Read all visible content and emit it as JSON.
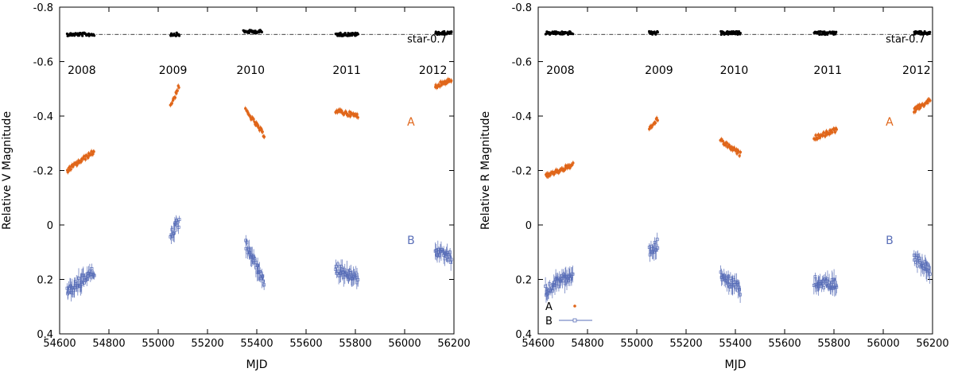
{
  "colors": {
    "A": "#e0661a",
    "B": "#5a6fb8",
    "star": "#000000"
  },
  "chart_data": [
    {
      "type": "scatter",
      "panel": "left",
      "xlabel": "MJD",
      "ylabel": "Relative V  Magnitude",
      "xlim": [
        54600,
        56200
      ],
      "ylim": [
        0.4,
        -0.8
      ],
      "xticks": [
        54600,
        54800,
        55000,
        55200,
        55400,
        55600,
        55800,
        56000,
        56200
      ],
      "yticks": [
        -0.8,
        -0.6,
        -0.4,
        -0.2,
        0,
        0.2,
        0.4
      ],
      "ytick_labels": [
        "-0.8",
        "-0.6",
        "-0.4",
        "-0.2",
        "0",
        "0.2",
        "0.4"
      ],
      "year_labels": [
        {
          "text": "2008",
          "x": 54690
        },
        {
          "text": "2009",
          "x": 55060
        },
        {
          "text": "2010",
          "x": 55375
        },
        {
          "text": "2011",
          "x": 55765
        },
        {
          "text": "2012",
          "x": 56115
        }
      ],
      "year_label_y": -0.555,
      "star_label": {
        "text": "star-0.7",
        "x": 56010,
        "y": -0.685
      },
      "star_line": -0.7,
      "series_labels": [
        {
          "text": "A",
          "x": 56010,
          "y": -0.365,
          "series": "A"
        },
        {
          "text": "B",
          "x": 56010,
          "y": 0.07,
          "series": "B"
        }
      ],
      "series": [
        {
          "name": "star",
          "segments": [
            [
              54630,
              54740,
              -0.7
            ],
            [
              55050,
              55085,
              -0.7
            ],
            [
              55345,
              55420,
              -0.71
            ],
            [
              55720,
              55810,
              -0.7
            ],
            [
              56125,
              56190,
              -0.705
            ]
          ]
        },
        {
          "name": "A",
          "segments": [
            [
              54630,
              54740,
              -0.2,
              -0.27
            ],
            [
              55050,
              55085,
              -0.44,
              -0.51
            ],
            [
              55355,
              55430,
              -0.42,
              -0.33
            ],
            [
              55720,
              55810,
              -0.42,
              -0.4
            ],
            [
              56125,
              56190,
              -0.51,
              -0.535
            ]
          ]
        },
        {
          "name": "B",
          "segments": [
            [
              54630,
              54740,
              0.25,
              0.17
            ],
            [
              55050,
              55085,
              0.04,
              -0.01
            ],
            [
              55355,
              55430,
              0.07,
              0.21
            ],
            [
              55720,
              55810,
              0.16,
              0.2
            ],
            [
              56125,
              56190,
              0.09,
              0.12
            ]
          ]
        }
      ]
    },
    {
      "type": "scatter",
      "panel": "right",
      "xlabel": "MJD",
      "ylabel": "Relative R Magnitude",
      "xlim": [
        54600,
        56200
      ],
      "ylim": [
        0.4,
        -0.8
      ],
      "xticks": [
        54600,
        54800,
        55000,
        55200,
        55400,
        55600,
        55800,
        56000,
        56200
      ],
      "yticks": [
        -0.8,
        -0.6,
        -0.4,
        -0.2,
        0,
        0.2,
        0.4
      ],
      "ytick_labels": [
        "-0.8",
        "-0.6",
        "-0.4",
        "-0.2",
        "0",
        "0.2",
        "0.4"
      ],
      "year_labels": [
        {
          "text": "2008",
          "x": 54690
        },
        {
          "text": "2009",
          "x": 55090
        },
        {
          "text": "2010",
          "x": 55395
        },
        {
          "text": "2011",
          "x": 55775
        },
        {
          "text": "2012",
          "x": 56135
        }
      ],
      "year_label_y": -0.555,
      "star_label": {
        "text": "star-0.7",
        "x": 56010,
        "y": -0.685
      },
      "star_line": -0.7,
      "series_labels": [
        {
          "text": "A",
          "x": 56010,
          "y": -0.365,
          "series": "A"
        },
        {
          "text": "B",
          "x": 56010,
          "y": 0.07,
          "series": "B"
        }
      ],
      "legend": [
        {
          "text": "A",
          "series": "A"
        },
        {
          "text": "B",
          "series": "B"
        }
      ],
      "series": [
        {
          "name": "star",
          "segments": [
            [
              54630,
              54740,
              -0.705
            ],
            [
              55050,
              55085,
              -0.705
            ],
            [
              55340,
              55420,
              -0.705
            ],
            [
              55720,
              55810,
              -0.705
            ],
            [
              56125,
              56190,
              -0.705
            ]
          ]
        },
        {
          "name": "A",
          "segments": [
            [
              54630,
              54740,
              -0.18,
              -0.22
            ],
            [
              55050,
              55085,
              -0.35,
              -0.39
            ],
            [
              55340,
              55420,
              -0.31,
              -0.26
            ],
            [
              55720,
              55810,
              -0.32,
              -0.35
            ],
            [
              56125,
              56190,
              -0.42,
              -0.46
            ]
          ]
        },
        {
          "name": "B",
          "segments": [
            [
              54630,
              54740,
              0.24,
              0.18
            ],
            [
              55050,
              55085,
              0.1,
              0.07
            ],
            [
              55340,
              55420,
              0.18,
              0.24
            ],
            [
              55720,
              55810,
              0.21,
              0.22
            ],
            [
              56125,
              56190,
              0.12,
              0.17
            ]
          ]
        }
      ]
    }
  ]
}
